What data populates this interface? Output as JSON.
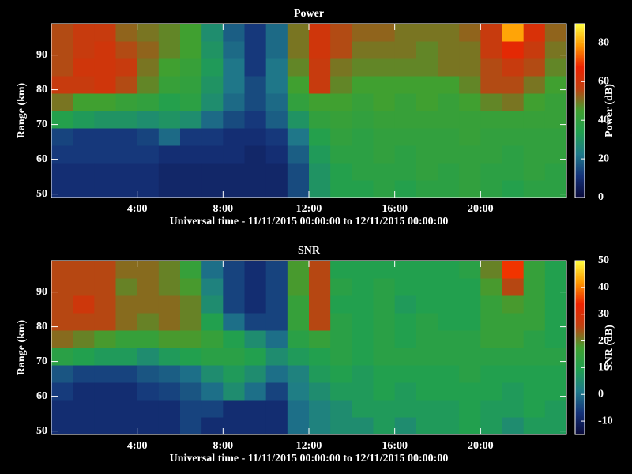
{
  "chart_data": [
    {
      "type": "heatmap",
      "title": "Power",
      "xlabel": "Universal time - 11/11/2015 00:00:00 to 12/11/2015 00:00:00",
      "ylabel": "Range (km)",
      "colorbar_label": "Power (dB)",
      "xlim": [
        0,
        24
      ],
      "xticks": [
        {
          "value": 4,
          "label": "4:00"
        },
        {
          "value": 8,
          "label": "8:00"
        },
        {
          "value": 12,
          "label": "12:00"
        },
        {
          "value": 16,
          "label": "16:00"
        },
        {
          "value": 20,
          "label": "20:00"
        }
      ],
      "ylim": [
        49,
        99
      ],
      "yticks": [
        50,
        60,
        70,
        80,
        90
      ],
      "clim": [
        0,
        90
      ],
      "cticks": [
        0,
        20,
        40,
        60,
        80
      ],
      "colormap": [
        "#0a0a3a",
        "#15337a",
        "#1f7a8a",
        "#20a050",
        "#40a030",
        "#c04010",
        "#ee2200",
        "#ff9900",
        "#ffff40"
      ],
      "xbins": [
        0,
        1,
        2,
        3,
        4,
        5,
        6,
        7,
        8,
        9,
        10,
        11,
        12,
        13,
        14,
        15,
        16,
        17,
        18,
        19,
        20,
        21,
        22,
        23,
        24
      ],
      "ybins": [
        49,
        54,
        59,
        64,
        69,
        74,
        79,
        84,
        89,
        94,
        99
      ],
      "z": [
        [
          10,
          10,
          10,
          10,
          10,
          8,
          8,
          8,
          8,
          8,
          8,
          15,
          30,
          35,
          35,
          38,
          35,
          38,
          38,
          40,
          38,
          35,
          38,
          38
        ],
        [
          10,
          10,
          10,
          10,
          10,
          8,
          8,
          8,
          8,
          8,
          8,
          15,
          30,
          35,
          38,
          38,
          38,
          40,
          38,
          40,
          38,
          38,
          40,
          38
        ],
        [
          12,
          12,
          12,
          12,
          12,
          10,
          10,
          10,
          10,
          8,
          10,
          18,
          32,
          38,
          38,
          40,
          38,
          40,
          40,
          40,
          40,
          38,
          40,
          40
        ],
        [
          14,
          12,
          12,
          12,
          14,
          20,
          12,
          12,
          10,
          10,
          12,
          22,
          35,
          40,
          38,
          40,
          40,
          40,
          40,
          42,
          40,
          40,
          40,
          40
        ],
        [
          35,
          32,
          30,
          30,
          28,
          30,
          28,
          20,
          15,
          12,
          18,
          30,
          40,
          42,
          40,
          42,
          42,
          42,
          42,
          42,
          42,
          42,
          42,
          42
        ],
        [
          50,
          45,
          45,
          42,
          40,
          35,
          38,
          28,
          20,
          15,
          20,
          40,
          45,
          45,
          42,
          45,
          42,
          45,
          42,
          45,
          48,
          50,
          45,
          42
        ],
        [
          58,
          58,
          60,
          55,
          48,
          42,
          40,
          30,
          22,
          15,
          22,
          45,
          58,
          48,
          45,
          45,
          45,
          45,
          45,
          48,
          55,
          55,
          50,
          45
        ],
        [
          55,
          60,
          60,
          58,
          50,
          45,
          42,
          32,
          22,
          12,
          22,
          48,
          58,
          50,
          48,
          48,
          48,
          48,
          50,
          50,
          55,
          58,
          55,
          48
        ],
        [
          55,
          58,
          60,
          55,
          52,
          48,
          45,
          30,
          20,
          12,
          20,
          50,
          60,
          55,
          50,
          50,
          50,
          48,
          50,
          50,
          58,
          65,
          58,
          50
        ],
        [
          55,
          58,
          58,
          52,
          50,
          48,
          45,
          28,
          18,
          12,
          20,
          50,
          60,
          55,
          52,
          52,
          50,
          50,
          50,
          52,
          58,
          80,
          62,
          52
        ]
      ]
    },
    {
      "type": "heatmap",
      "title": "SNR",
      "xlabel": "Universal time - 11/11/2015 00:00:00 to 12/11/2015 00:00:00",
      "ylabel": "Range (km)",
      "colorbar_label": "SNR (dB)",
      "xlim": [
        0,
        24
      ],
      "xticks": [
        {
          "value": 4,
          "label": "4:00"
        },
        {
          "value": 8,
          "label": "8:00"
        },
        {
          "value": 12,
          "label": "12:00"
        },
        {
          "value": 16,
          "label": "16:00"
        },
        {
          "value": 20,
          "label": "20:00"
        }
      ],
      "ylim": [
        49,
        99
      ],
      "yticks": [
        50,
        60,
        70,
        80,
        90
      ],
      "clim": [
        -15,
        50
      ],
      "cticks": [
        -10,
        0,
        10,
        20,
        30,
        40,
        50
      ],
      "colormap": [
        "#0a0a3a",
        "#15337a",
        "#1f7a8a",
        "#20a050",
        "#40a030",
        "#c04010",
        "#ee2200",
        "#ff9900",
        "#ffff40"
      ],
      "xbins": [
        0,
        1,
        2,
        3,
        4,
        5,
        6,
        7,
        8,
        9,
        10,
        11,
        12,
        13,
        14,
        15,
        16,
        17,
        18,
        19,
        20,
        21,
        22,
        23,
        24
      ],
      "ybins": [
        49,
        54,
        59,
        64,
        69,
        74,
        79,
        84,
        89,
        94,
        99
      ],
      "z": [
        [
          -8,
          -8,
          -8,
          -8,
          -8,
          -8,
          -5,
          -8,
          -8,
          -8,
          -8,
          0,
          3,
          5,
          5,
          8,
          5,
          8,
          8,
          10,
          8,
          5,
          8,
          8
        ],
        [
          -8,
          -8,
          -8,
          -8,
          -8,
          -8,
          -5,
          -5,
          -8,
          -8,
          -8,
          0,
          3,
          5,
          8,
          8,
          8,
          8,
          8,
          10,
          8,
          8,
          10,
          8
        ],
        [
          -6,
          -8,
          -8,
          -8,
          -6,
          -5,
          -3,
          0,
          5,
          0,
          -5,
          2,
          5,
          8,
          8,
          10,
          8,
          10,
          10,
          10,
          10,
          8,
          10,
          10
        ],
        [
          -3,
          -5,
          -5,
          -5,
          -3,
          -2,
          0,
          5,
          8,
          5,
          0,
          3,
          8,
          10,
          8,
          10,
          10,
          10,
          10,
          12,
          10,
          10,
          10,
          10
        ],
        [
          12,
          10,
          8,
          8,
          5,
          8,
          10,
          12,
          12,
          10,
          5,
          8,
          10,
          12,
          10,
          12,
          12,
          12,
          12,
          12,
          12,
          12,
          12,
          12
        ],
        [
          22,
          20,
          18,
          15,
          15,
          18,
          18,
          15,
          10,
          5,
          0,
          12,
          15,
          12,
          10,
          12,
          10,
          12,
          12,
          12,
          15,
          15,
          12,
          10
        ],
        [
          25,
          25,
          25,
          22,
          20,
          22,
          20,
          10,
          0,
          -5,
          -5,
          15,
          25,
          12,
          10,
          12,
          10,
          12,
          10,
          10,
          15,
          15,
          15,
          10
        ],
        [
          25,
          28,
          25,
          22,
          22,
          22,
          20,
          5,
          -5,
          -8,
          -5,
          15,
          25,
          10,
          10,
          12,
          8,
          10,
          10,
          10,
          15,
          18,
          15,
          10
        ],
        [
          25,
          25,
          25,
          20,
          22,
          20,
          18,
          3,
          -5,
          -8,
          -5,
          18,
          25,
          12,
          10,
          12,
          10,
          10,
          10,
          10,
          18,
          25,
          15,
          10
        ],
        [
          25,
          25,
          25,
          22,
          22,
          20,
          15,
          0,
          -5,
          -8,
          -5,
          18,
          25,
          10,
          10,
          10,
          10,
          10,
          10,
          12,
          20,
          35,
          15,
          10
        ]
      ]
    }
  ]
}
